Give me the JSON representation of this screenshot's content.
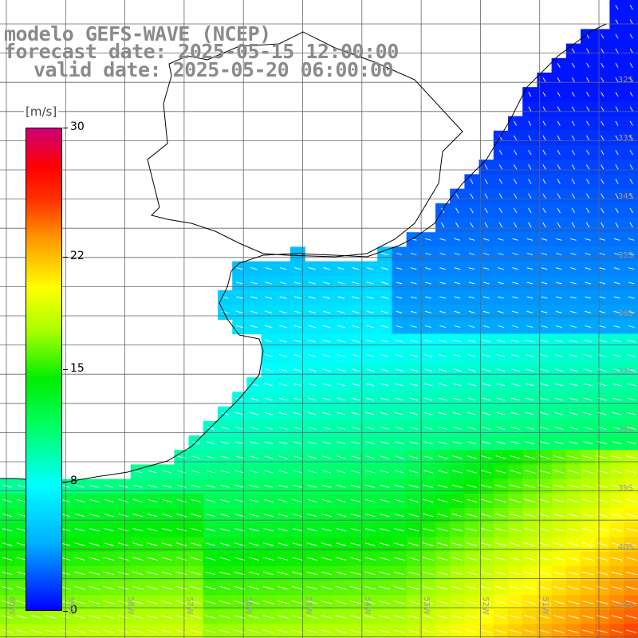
{
  "title": {
    "line1": "modelo GEFS-WAVE (NCEP)",
    "line2": "forecast date: 2025-05-15 12:00:00",
    "line3": "valid date: 2025-05-20 06:00:00"
  },
  "colorbar": {
    "unit": "[m/s]",
    "ticks": [
      "30",
      "22",
      "15",
      "8",
      "0"
    ],
    "tick_values": [
      30,
      22,
      15,
      8,
      0
    ],
    "colors": [
      "#0000ff",
      "#00b0ff",
      "#00ffff",
      "#00ff66",
      "#00ee00",
      "#aaff00",
      "#ffff00",
      "#ff9900",
      "#ff3300",
      "#ff0000",
      "#cc0077"
    ],
    "color_stops": [
      0,
      0.14,
      0.26,
      0.38,
      0.48,
      0.58,
      0.67,
      0.77,
      0.85,
      0.92,
      1.0
    ]
  },
  "lat_labels": [
    "32S",
    "33S",
    "34S",
    "35S",
    "36S",
    "37S",
    "38S",
    "39S",
    "40S",
    "41S"
  ],
  "lon_labels": [
    "60W",
    "59W",
    "58W",
    "57W",
    "56W",
    "55W",
    "54W",
    "53W",
    "52W",
    "51W"
  ],
  "wind_field": {
    "description_units": "m/s",
    "lon_range": [
      -60.0,
      -50.6
    ],
    "lat_range": [
      -30.6,
      -41.6
    ],
    "notes": "estimated 10m wind speed sampled in coarse patches"
  },
  "colors": {
    "coast": "#000000",
    "grid": "#666666",
    "land": "#ffffff",
    "arrow": "#ffffff"
  }
}
